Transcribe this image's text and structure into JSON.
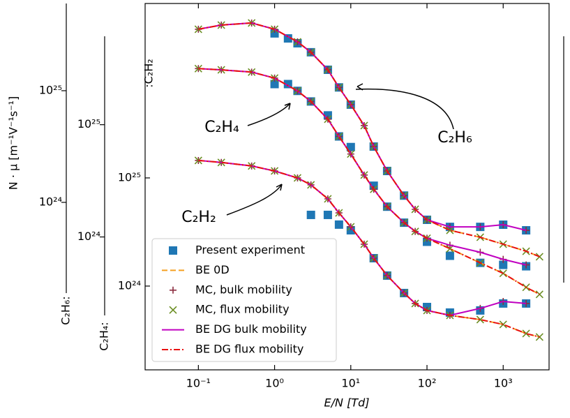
{
  "chart_data": {
    "type": "line",
    "xlabel": "E/N [Td]",
    "ylabel": "N · μ [m⁻¹V⁻¹s⁻¹]",
    "log_x": true,
    "log_y": true,
    "xlim": [
      0.02,
      4000
    ],
    "xticks": [
      {
        "value": 0.1,
        "label": "10⁻¹"
      },
      {
        "value": 1,
        "label": "10⁰"
      },
      {
        "value": 10,
        "label": "10¹"
      },
      {
        "value": 100,
        "label": "10²"
      },
      {
        "value": 1000,
        "label": "10³"
      }
    ],
    "y_axes": [
      {
        "label": "C₂H₆:",
        "ylim": [
          1.54e+23,
          6.04e+25
        ],
        "yticks": [
          {
            "value": 1e+24,
            "label": "10²⁴"
          },
          {
            "value": 1e+25,
            "label": "10²⁵"
          }
        ]
      },
      {
        "label": "C₂H₄:",
        "ylim": [
          2e+23,
          6.13e+25
        ],
        "yticks": [
          {
            "value": 1e+24,
            "label": "10²⁴"
          },
          {
            "value": 1e+25,
            "label": "10²⁵"
          }
        ]
      },
      {
        "label": ":C₂H₂",
        "ylim": [
          1.68e+23,
          4.1e+26
        ],
        "yticks": [
          {
            "value": 1e+24,
            "label": "10²⁴"
          },
          {
            "value": 1e+25,
            "label": "10²⁵"
          }
        ]
      }
    ],
    "legend_position": "lower left",
    "legend": [
      {
        "name": "Present experiment",
        "color": "#1f77b4",
        "marker": "square",
        "line": null
      },
      {
        "name": "BE 0D",
        "color": "#f5a020",
        "marker": null,
        "line": "dashed"
      },
      {
        "name": "MC, bulk mobility",
        "color": "#8c2d40",
        "marker": "plus",
        "line": null
      },
      {
        "name": "MC, flux mobility",
        "color": "#6b8e23",
        "marker": "x",
        "line": null
      },
      {
        "name": "BE DG bulk mobility",
        "color": "#c000c0",
        "marker": null,
        "line": "solid"
      },
      {
        "name": "BE DG flux mobility",
        "color": "#e81010",
        "marker": null,
        "line": "dashdot"
      }
    ],
    "groups": [
      {
        "label": "C₂H₆",
        "y_axis": 0,
        "series": [
          {
            "x": [
              1,
              1.5,
              2,
              3,
              5,
              7,
              10,
              20,
              30,
              50,
              100,
              200,
              500,
              1000,
              2000
            ],
            "values": [
              3.26e+25,
              2.94e+25,
              2.66e+25,
              2.21e+25,
              1.54e+25,
              1.07e+25,
              7.5e+24,
              3.16e+24,
              1.91e+24,
              1.15e+24,
              6.98e+23,
              6.03e+23,
              6.03e+23,
              6.31e+23,
              5.62e+23
            ]
          },
          {
            "x": [
              0.1,
              0.2,
              0.5,
              1,
              2,
              3,
              5,
              7,
              10,
              15,
              20,
              30,
              50,
              70,
              100,
              200,
              500,
              1000,
              2000,
              3000
            ],
            "values": [
              3.55e+25,
              3.87e+25,
              4.04e+25,
              3.55e+25,
              2.74e+25,
              2.21e+25,
              1.54e+25,
              1.07e+25,
              7.5e+24,
              4.87e+24,
              3.16e+24,
              1.91e+24,
              1.15e+24,
              8.66e+23,
              6.98e+23,
              5.62e+23,
              4.87e+23,
              4.22e+23,
              3.65e+23,
              3.26e+23
            ]
          },
          {
            "x": [
              0.1,
              0.2,
              0.5,
              1,
              2,
              3,
              5,
              7,
              10,
              15,
              20,
              30,
              50,
              70,
              100,
              200,
              500,
              1000,
              2000
            ],
            "values": [
              3.55e+25,
              3.87e+25,
              4.04e+25,
              3.55e+25,
              2.74e+25,
              2.21e+25,
              1.54e+25,
              1.07e+25,
              7.5e+24,
              4.87e+24,
              3.16e+24,
              1.91e+24,
              1.15e+24,
              8.66e+23,
              6.98e+23,
              6.03e+23,
              6.03e+23,
              6.31e+23,
              5.62e+23
            ]
          },
          {
            "x": [
              0.1,
              0.2,
              0.5,
              1,
              2,
              3,
              5,
              7,
              10,
              15,
              20,
              30,
              50,
              70,
              100,
              200,
              500,
              1000,
              2000,
              3000
            ],
            "values": [
              3.55e+25,
              3.87e+25,
              4.04e+25,
              3.55e+25,
              2.74e+25,
              2.21e+25,
              1.54e+25,
              1.07e+25,
              7.5e+24,
              4.87e+24,
              3.16e+24,
              1.91e+24,
              1.15e+24,
              8.66e+23,
              6.98e+23,
              5.62e+23,
              4.87e+23,
              4.22e+23,
              3.65e+23,
              3.26e+23
            ]
          },
          {
            "x": [
              0.1,
              0.2,
              0.5,
              1,
              2,
              3,
              5,
              7,
              10,
              15,
              20,
              30,
              50,
              70,
              100,
              200,
              500,
              1000,
              2000
            ],
            "values": [
              3.55e+25,
              3.87e+25,
              4.04e+25,
              3.55e+25,
              2.74e+25,
              2.21e+25,
              1.54e+25,
              1.07e+25,
              7.5e+24,
              4.87e+24,
              3.16e+24,
              1.91e+24,
              1.15e+24,
              8.66e+23,
              6.98e+23,
              6.03e+23,
              6.03e+23,
              6.31e+23,
              5.62e+23
            ]
          },
          {
            "x": [
              0.1,
              0.2,
              0.5,
              1,
              2,
              3,
              5,
              7,
              10,
              15,
              20,
              30,
              50,
              70,
              100,
              200,
              500,
              1000,
              2000,
              3000
            ],
            "values": [
              3.55e+25,
              3.87e+25,
              4.04e+25,
              3.55e+25,
              2.74e+25,
              2.21e+25,
              1.54e+25,
              1.07e+25,
              7.5e+24,
              4.87e+24,
              3.16e+24,
              1.91e+24,
              1.15e+24,
              8.66e+23,
              6.98e+23,
              5.62e+23,
              4.87e+23,
              4.22e+23,
              3.65e+23,
              3.26e+23
            ]
          }
        ]
      },
      {
        "label": "C₂H₄",
        "y_axis": 1,
        "series": [
          {
            "x": [
              1,
              1.5,
              2,
              3,
              5,
              7,
              10,
              20,
              30,
              50,
              100,
              200,
              500,
              1000,
              2000
            ],
            "values": [
              2.3e+25,
              2.3e+25,
              2e+25,
              1.61e+25,
              1.21e+25,
              7.86e+24,
              6.32e+24,
              2.86e+24,
              1.86e+24,
              1.34e+24,
              9.06e+23,
              6.8e+23,
              5.88e+23,
              5.64e+23,
              5.48e+23
            ]
          },
          {
            "x": [
              0.1,
              0.2,
              0.5,
              1,
              2,
              3,
              5,
              7,
              10,
              15,
              20,
              30,
              50,
              70,
              100,
              200,
              500,
              1000,
              2000,
              3000
            ],
            "values": [
              3.16e+25,
              3.08e+25,
              2.94e+25,
              2.6e+25,
              2e+25,
              1.61e+25,
              1.12e+25,
              7.86e+24,
              5.48e+24,
              3.56e+24,
              2.66e+24,
              1.86e+24,
              1.34e+24,
              1.12e+24,
              9.74e+23,
              7.86e+23,
              5.88e+23,
              4.74e+23,
              3.56e+23,
              3.08e+23
            ]
          },
          {
            "x": [
              0.1,
              0.2,
              0.5,
              1,
              2,
              3,
              5,
              7,
              10,
              15,
              20,
              30,
              50,
              70,
              100,
              200,
              500,
              1000,
              2000
            ],
            "values": [
              3.16e+25,
              3.08e+25,
              2.94e+25,
              2.6e+25,
              2e+25,
              1.61e+25,
              1.12e+25,
              7.86e+24,
              5.48e+24,
              3.56e+24,
              2.66e+24,
              1.86e+24,
              1.34e+24,
              1.12e+24,
              9.74e+23,
              8.44e+23,
              7.3e+23,
              6.32e+23,
              5.64e+23
            ]
          },
          {
            "x": [
              0.1,
              0.2,
              0.5,
              1,
              2,
              3,
              5,
              7,
              10,
              15,
              20,
              30,
              50,
              70,
              100,
              200,
              500,
              1000,
              2000,
              3000
            ],
            "values": [
              3.16e+25,
              3.08e+25,
              2.94e+25,
              2.6e+25,
              2e+25,
              1.61e+25,
              1.12e+25,
              7.86e+24,
              5.48e+24,
              3.56e+24,
              2.66e+24,
              1.86e+24,
              1.34e+24,
              1.12e+24,
              9.74e+23,
              7.86e+23,
              5.88e+23,
              4.74e+23,
              3.56e+23,
              3.08e+23
            ]
          },
          {
            "x": [
              0.1,
              0.2,
              0.5,
              1,
              2,
              3,
              5,
              7,
              10,
              15,
              20,
              30,
              50,
              70,
              100,
              200,
              500,
              1000,
              2000
            ],
            "values": [
              3.16e+25,
              3.08e+25,
              2.94e+25,
              2.6e+25,
              2e+25,
              1.61e+25,
              1.12e+25,
              7.86e+24,
              5.48e+24,
              3.56e+24,
              2.66e+24,
              1.86e+24,
              1.34e+24,
              1.12e+24,
              9.74e+23,
              8.44e+23,
              7.3e+23,
              6.32e+23,
              5.64e+23
            ]
          },
          {
            "x": [
              0.1,
              0.2,
              0.5,
              1,
              2,
              3,
              5,
              7,
              10,
              15,
              20,
              30,
              50,
              70,
              100,
              200,
              500,
              1000,
              2000,
              3000
            ],
            "values": [
              3.16e+25,
              3.08e+25,
              2.94e+25,
              2.6e+25,
              2e+25,
              1.61e+25,
              1.12e+25,
              7.86e+24,
              5.48e+24,
              3.56e+24,
              2.66e+24,
              1.86e+24,
              1.34e+24,
              1.12e+24,
              9.74e+23,
              7.86e+23,
              5.88e+23,
              4.74e+23,
              3.56e+23,
              3.08e+23
            ]
          }
        ]
      },
      {
        "label": "C₂H₂",
        "y_axis": 2,
        "series": [
          {
            "x": [
              3,
              5,
              7,
              10,
              20,
              30,
              50,
              100,
              200,
              500,
              1000,
              2000
            ],
            "values": [
              4.55e+24,
              4.55e+24,
              3.7e+24,
              3.28e+24,
              1.81e+24,
              1.25e+24,
              8.62e+23,
              6.4e+23,
              5.69e+23,
              5.95e+23,
              6.9e+23,
              6.9e+23
            ]
          },
          {
            "x": [
              0.1,
              0.2,
              0.5,
              1,
              2,
              3,
              5,
              7,
              10,
              15,
              20,
              30,
              50,
              70,
              100,
              200,
              500,
              1000,
              2000,
              3000
            ],
            "values": [
              1.45e+25,
              1.39e+25,
              1.29e+25,
              1.16e+25,
              1e+25,
              8.62e+24,
              6.4e+24,
              4.75e+24,
              3.53e+24,
              2.44e+24,
              1.81e+24,
              1.25e+24,
              8.62e+23,
              6.9e+23,
              5.95e+23,
              5.36e+23,
              4.9e+23,
              4.42e+23,
              3.64e+23,
              3.38e+23
            ]
          },
          {
            "x": [
              0.1,
              0.2,
              0.5,
              1,
              2,
              3,
              5,
              7,
              10,
              15,
              20,
              30,
              50,
              70,
              100,
              200,
              500,
              1000,
              2000
            ],
            "values": [
              1.45e+25,
              1.39e+25,
              1.29e+25,
              1.16e+25,
              1e+25,
              8.62e+24,
              6.4e+24,
              4.75e+24,
              3.53e+24,
              2.44e+24,
              1.81e+24,
              1.25e+24,
              8.62e+23,
              6.9e+23,
              5.95e+23,
              5.36e+23,
              6.22e+23,
              7.21e+23,
              6.9e+23
            ]
          },
          {
            "x": [
              0.1,
              0.2,
              0.5,
              1,
              2,
              3,
              5,
              7,
              10,
              15,
              20,
              30,
              50,
              70,
              100,
              200,
              500,
              1000,
              2000,
              3000
            ],
            "values": [
              1.45e+25,
              1.39e+25,
              1.29e+25,
              1.16e+25,
              1e+25,
              8.62e+24,
              6.4e+24,
              4.75e+24,
              3.53e+24,
              2.44e+24,
              1.81e+24,
              1.25e+24,
              8.62e+23,
              6.9e+23,
              5.95e+23,
              5.36e+23,
              4.9e+23,
              4.42e+23,
              3.64e+23,
              3.38e+23
            ]
          },
          {
            "x": [
              0.1,
              0.2,
              0.5,
              1,
              2,
              3,
              5,
              7,
              10,
              15,
              20,
              30,
              50,
              70,
              100,
              200,
              500,
              1000,
              2000
            ],
            "values": [
              1.45e+25,
              1.39e+25,
              1.29e+25,
              1.16e+25,
              1e+25,
              8.62e+24,
              6.4e+24,
              4.75e+24,
              3.53e+24,
              2.44e+24,
              1.81e+24,
              1.25e+24,
              8.62e+23,
              6.9e+23,
              5.95e+23,
              5.36e+23,
              6.22e+23,
              7.21e+23,
              6.9e+23
            ]
          },
          {
            "x": [
              0.1,
              0.2,
              0.5,
              1,
              2,
              3,
              5,
              7,
              10,
              15,
              20,
              30,
              50,
              70,
              100,
              200,
              500,
              1000,
              2000,
              3000
            ],
            "values": [
              1.45e+25,
              1.39e+25,
              1.29e+25,
              1.16e+25,
              1e+25,
              8.62e+24,
              6.4e+24,
              4.75e+24,
              3.53e+24,
              2.44e+24,
              1.81e+24,
              1.25e+24,
              8.62e+23,
              6.9e+23,
              5.95e+23,
              5.36e+23,
              4.9e+23,
              4.42e+23,
              3.64e+23,
              3.38e+23
            ]
          }
        ]
      }
    ]
  }
}
